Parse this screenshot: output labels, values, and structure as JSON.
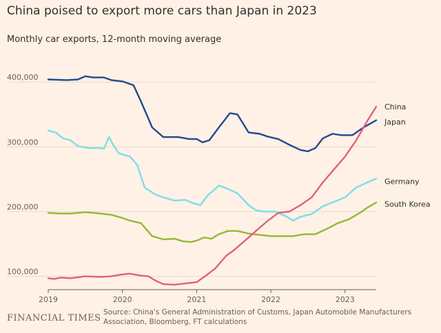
{
  "header": {
    "title": "China poised to export more cars than Japan in 2023",
    "subtitle": "Monthly car exports, 12-month moving average"
  },
  "footer": {
    "brand": "FINANCIAL TIMES",
    "source": "Source: China's General Administration of Customs, Japan Automobile Manufacturers Association, Bloomberg, FT calculations"
  },
  "chart_data": {
    "type": "line",
    "title": "China poised to export more cars than Japan in 2023",
    "subtitle": "Monthly car exports, 12-month moving average",
    "xlabel": "",
    "ylabel": "",
    "xlim": [
      2019.0,
      2023.42
    ],
    "ylim": [
      90000,
      430000
    ],
    "x_ticks": [
      2019,
      2020,
      2021,
      2022,
      2023
    ],
    "x_tick_labels": [
      "2019",
      "2020",
      "2021",
      "2022",
      "2023"
    ],
    "y_ticks": [
      100000,
      200000,
      300000,
      400000
    ],
    "y_tick_labels": [
      "100,000",
      "200,000",
      "300,000",
      "400,000"
    ],
    "grid": "horizontal",
    "legend": "direct labels at right end of each line",
    "series": [
      {
        "name": "Japan",
        "label": "Japan",
        "color": "#1f4b8e",
        "points": [
          [
            2019.0,
            404000
          ],
          [
            2019.25,
            403000
          ],
          [
            2019.4,
            404000
          ],
          [
            2019.5,
            409000
          ],
          [
            2019.6,
            407000
          ],
          [
            2019.75,
            407000
          ],
          [
            2019.85,
            403000
          ],
          [
            2020.0,
            401000
          ],
          [
            2020.15,
            395000
          ],
          [
            2020.25,
            370000
          ],
          [
            2020.4,
            330000
          ],
          [
            2020.55,
            315000
          ],
          [
            2020.75,
            315000
          ],
          [
            2020.9,
            312000
          ],
          [
            2021.0,
            312000
          ],
          [
            2021.08,
            307000
          ],
          [
            2021.17,
            310000
          ],
          [
            2021.3,
            330000
          ],
          [
            2021.45,
            352000
          ],
          [
            2021.55,
            350000
          ],
          [
            2021.7,
            322000
          ],
          [
            2021.85,
            320000
          ],
          [
            2021.95,
            316000
          ],
          [
            2022.1,
            312000
          ],
          [
            2022.25,
            303000
          ],
          [
            2022.4,
            295000
          ],
          [
            2022.5,
            293000
          ],
          [
            2022.6,
            298000
          ],
          [
            2022.7,
            313000
          ],
          [
            2022.83,
            320000
          ],
          [
            2022.95,
            318000
          ],
          [
            2023.1,
            318000
          ],
          [
            2023.25,
            330000
          ],
          [
            2023.42,
            341000
          ]
        ]
      },
      {
        "name": "China",
        "label": "China",
        "color": "#e0607e",
        "points": [
          [
            2019.0,
            97000
          ],
          [
            2019.08,
            96000
          ],
          [
            2019.17,
            98000
          ],
          [
            2019.3,
            97000
          ],
          [
            2019.5,
            100000
          ],
          [
            2019.7,
            99000
          ],
          [
            2019.85,
            100000
          ],
          [
            2020.0,
            103000
          ],
          [
            2020.1,
            104000
          ],
          [
            2020.25,
            101000
          ],
          [
            2020.35,
            100000
          ],
          [
            2020.45,
            93000
          ],
          [
            2020.55,
            88000
          ],
          [
            2020.7,
            87000
          ],
          [
            2020.85,
            89000
          ],
          [
            2021.0,
            91000
          ],
          [
            2021.1,
            99000
          ],
          [
            2021.25,
            112000
          ],
          [
            2021.4,
            132000
          ],
          [
            2021.5,
            140000
          ],
          [
            2021.65,
            155000
          ],
          [
            2021.8,
            170000
          ],
          [
            2021.95,
            185000
          ],
          [
            2022.1,
            198000
          ],
          [
            2022.25,
            200000
          ],
          [
            2022.4,
            210000
          ],
          [
            2022.55,
            222000
          ],
          [
            2022.7,
            245000
          ],
          [
            2022.85,
            265000
          ],
          [
            2023.0,
            285000
          ],
          [
            2023.15,
            310000
          ],
          [
            2023.3,
            340000
          ],
          [
            2023.42,
            362000
          ]
        ]
      },
      {
        "name": "Germany",
        "label": "Germany",
        "color": "#7adfe6",
        "points": [
          [
            2019.0,
            325000
          ],
          [
            2019.1,
            322000
          ],
          [
            2019.2,
            313000
          ],
          [
            2019.3,
            310000
          ],
          [
            2019.4,
            301000
          ],
          [
            2019.55,
            298000
          ],
          [
            2019.7,
            298000
          ],
          [
            2019.75,
            297000
          ],
          [
            2019.82,
            315000
          ],
          [
            2019.88,
            302000
          ],
          [
            2019.95,
            290000
          ],
          [
            2020.1,
            285000
          ],
          [
            2020.2,
            272000
          ],
          [
            2020.3,
            237000
          ],
          [
            2020.45,
            226000
          ],
          [
            2020.55,
            222000
          ],
          [
            2020.7,
            217000
          ],
          [
            2020.85,
            218000
          ],
          [
            2020.95,
            213000
          ],
          [
            2021.05,
            210000
          ],
          [
            2021.15,
            225000
          ],
          [
            2021.3,
            240000
          ],
          [
            2021.42,
            235000
          ],
          [
            2021.55,
            228000
          ],
          [
            2021.7,
            210000
          ],
          [
            2021.8,
            202000
          ],
          [
            2021.9,
            200000
          ],
          [
            2022.05,
            200000
          ],
          [
            2022.2,
            193000
          ],
          [
            2022.3,
            186000
          ],
          [
            2022.4,
            192000
          ],
          [
            2022.55,
            196000
          ],
          [
            2022.7,
            208000
          ],
          [
            2022.85,
            215000
          ],
          [
            2023.0,
            222000
          ],
          [
            2023.15,
            237000
          ],
          [
            2023.3,
            245000
          ],
          [
            2023.42,
            251000
          ]
        ]
      },
      {
        "name": "South Korea",
        "label": "South Korea",
        "color": "#96b734",
        "points": [
          [
            2019.0,
            198000
          ],
          [
            2019.15,
            197000
          ],
          [
            2019.3,
            197000
          ],
          [
            2019.5,
            199000
          ],
          [
            2019.7,
            197000
          ],
          [
            2019.85,
            195000
          ],
          [
            2020.0,
            190000
          ],
          [
            2020.1,
            186000
          ],
          [
            2020.25,
            182000
          ],
          [
            2020.4,
            162000
          ],
          [
            2020.55,
            157000
          ],
          [
            2020.7,
            158000
          ],
          [
            2020.82,
            154000
          ],
          [
            2020.92,
            153000
          ],
          [
            2021.0,
            155000
          ],
          [
            2021.1,
            160000
          ],
          [
            2021.2,
            158000
          ],
          [
            2021.3,
            165000
          ],
          [
            2021.42,
            170000
          ],
          [
            2021.55,
            170000
          ],
          [
            2021.7,
            166000
          ],
          [
            2021.85,
            164000
          ],
          [
            2022.0,
            162000
          ],
          [
            2022.15,
            162000
          ],
          [
            2022.3,
            162000
          ],
          [
            2022.45,
            165000
          ],
          [
            2022.6,
            165000
          ],
          [
            2022.75,
            173000
          ],
          [
            2022.9,
            182000
          ],
          [
            2023.05,
            188000
          ],
          [
            2023.2,
            198000
          ],
          [
            2023.3,
            206000
          ],
          [
            2023.42,
            214000
          ]
        ]
      }
    ]
  }
}
